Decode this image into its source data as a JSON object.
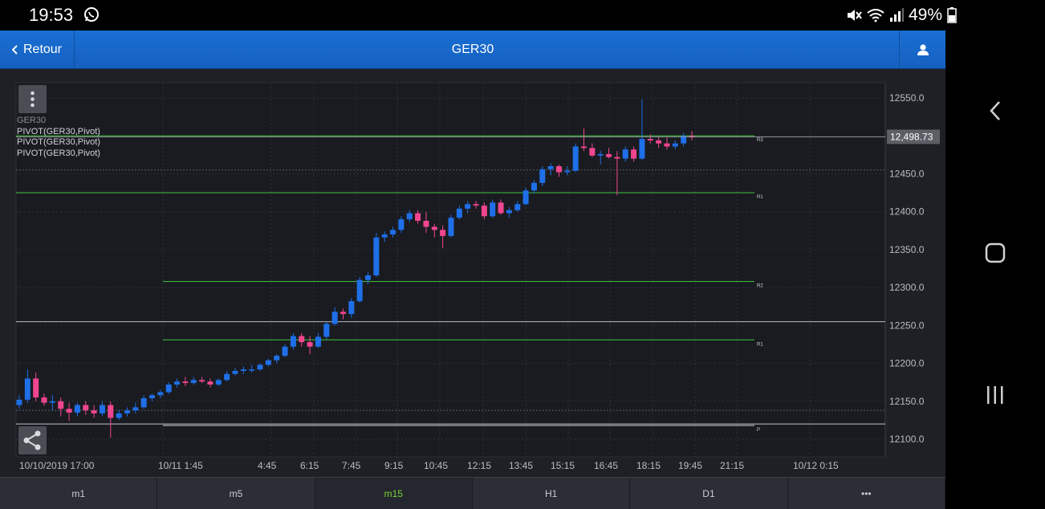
{
  "status_bar": {
    "time": "19:53",
    "battery": "49%",
    "icons": [
      "whatsapp-icon",
      "mute-icon",
      "wifi-icon",
      "signal-icon",
      "battery-icon"
    ]
  },
  "header": {
    "back_label": "Retour",
    "title": "GER30",
    "user_icon": "user-icon"
  },
  "colors": {
    "header_blue": "#1766cb",
    "up_candle": "#1f6fe8",
    "down_candle": "#f0468f",
    "pivot_line": "#3bb33b",
    "active_tab": "#7bd33b",
    "chart_bg": "#1e2026"
  },
  "legend": {
    "symbol": "GER30",
    "lines": [
      "PIVOT(GER30,Pivot)",
      "PIVOT(GER30,Pivot)",
      "PIVOT(GER30,Pivot)"
    ]
  },
  "chart_data": {
    "type": "candlestick",
    "symbol": "GER30",
    "timeframe": "m15",
    "ylim": [
      12085,
      12565
    ],
    "y_ticks": [
      "12550.0",
      "12500.0",
      "12450.0",
      "12400.0",
      "12350.0",
      "12300.0",
      "12250.0",
      "12200.0",
      "12150.0",
      "12100.0"
    ],
    "x_tick_labels": [
      "10/10/2019 17:00",
      "10/11 1:45",
      "4:45",
      "6:15",
      "7:45",
      "9:15",
      "10:45",
      "12:15",
      "13:45",
      "15:15",
      "16:45",
      "18:15",
      "19:45",
      "21:15",
      "10/12 0:15"
    ],
    "current_price": "12,498.73",
    "pivot_levels": [
      {
        "label": "R3",
        "value": 12500
      },
      {
        "label": "R1",
        "value": 12425
      },
      {
        "label": "R2",
        "value": 12308
      },
      {
        "label": "R1",
        "value": 12231
      },
      {
        "label": "P",
        "value": 12118
      }
    ],
    "reference_lines": [
      12255,
      12120
    ],
    "candles": [
      [
        12145,
        12158,
        12140,
        12152
      ],
      [
        12152,
        12192,
        12148,
        12180
      ],
      [
        12180,
        12188,
        12150,
        12155
      ],
      [
        12155,
        12160,
        12144,
        12148
      ],
      [
        12148,
        12158,
        12138,
        12150
      ],
      [
        12150,
        12155,
        12130,
        12140
      ],
      [
        12140,
        12148,
        12124,
        12135
      ],
      [
        12135,
        12148,
        12130,
        12145
      ],
      [
        12145,
        12150,
        12132,
        12138
      ],
      [
        12138,
        12145,
        12128,
        12134
      ],
      [
        12134,
        12150,
        12130,
        12145
      ],
      [
        12145,
        12150,
        12102,
        12128
      ],
      [
        12128,
        12138,
        12125,
        12134
      ],
      [
        12134,
        12142,
        12130,
        12138
      ],
      [
        12138,
        12148,
        12134,
        12142
      ],
      [
        12142,
        12158,
        12140,
        12154
      ],
      [
        12154,
        12160,
        12150,
        12158
      ],
      [
        12158,
        12165,
        12154,
        12162
      ],
      [
        12162,
        12175,
        12160,
        12172
      ],
      [
        12172,
        12180,
        12168,
        12176
      ],
      [
        12176,
        12182,
        12170,
        12174
      ],
      [
        12174,
        12182,
        12172,
        12178
      ],
      [
        12178,
        12182,
        12174,
        12176
      ],
      [
        12176,
        12180,
        12168,
        12172
      ],
      [
        12172,
        12180,
        12170,
        12178
      ],
      [
        12178,
        12190,
        12176,
        12186
      ],
      [
        12186,
        12194,
        12184,
        12190
      ],
      [
        12190,
        12196,
        12186,
        12192
      ],
      [
        12192,
        12198,
        12188,
        12192
      ],
      [
        12192,
        12200,
        12190,
        12198
      ],
      [
        12198,
        12206,
        12196,
        12204
      ],
      [
        12204,
        12212,
        12200,
        12210
      ],
      [
        12210,
        12225,
        12208,
        12222
      ],
      [
        12222,
        12240,
        12218,
        12236
      ],
      [
        12236,
        12240,
        12222,
        12228
      ],
      [
        12228,
        12236,
        12212,
        12222
      ],
      [
        12222,
        12240,
        12220,
        12235
      ],
      [
        12235,
        12255,
        12232,
        12252
      ],
      [
        12252,
        12274,
        12250,
        12268
      ],
      [
        12268,
        12272,
        12258,
        12265
      ],
      [
        12265,
        12286,
        12260,
        12282
      ],
      [
        12282,
        12314,
        12280,
        12310
      ],
      [
        12310,
        12320,
        12304,
        12316
      ],
      [
        12316,
        12372,
        12314,
        12366
      ],
      [
        12366,
        12374,
        12360,
        12370
      ],
      [
        12370,
        12380,
        12366,
        12376
      ],
      [
        12376,
        12394,
        12372,
        12390
      ],
      [
        12390,
        12402,
        12386,
        12398
      ],
      [
        12398,
        12402,
        12384,
        12388
      ],
      [
        12388,
        12400,
        12372,
        12380
      ],
      [
        12380,
        12384,
        12366,
        12376
      ],
      [
        12376,
        12382,
        12352,
        12368
      ],
      [
        12368,
        12396,
        12366,
        12392
      ],
      [
        12392,
        12408,
        12390,
        12404
      ],
      [
        12404,
        12414,
        12398,
        12410
      ],
      [
        12410,
        12414,
        12404,
        12408
      ],
      [
        12408,
        12412,
        12390,
        12394
      ],
      [
        12394,
        12416,
        12392,
        12412
      ],
      [
        12412,
        12416,
        12396,
        12398
      ],
      [
        12398,
        12406,
        12392,
        12402
      ],
      [
        12402,
        12414,
        12400,
        12410
      ],
      [
        12410,
        12432,
        12408,
        12428
      ],
      [
        12428,
        12442,
        12424,
        12438
      ],
      [
        12438,
        12460,
        12434,
        12456
      ],
      [
        12456,
        12464,
        12448,
        12460
      ],
      [
        12460,
        12462,
        12446,
        12452
      ],
      [
        12452,
        12460,
        12448,
        12454
      ],
      [
        12454,
        12490,
        12452,
        12486
      ],
      [
        12486,
        12510,
        12480,
        12484
      ],
      [
        12484,
        12490,
        12472,
        12474
      ],
      [
        12474,
        12480,
        12462,
        12476
      ],
      [
        12476,
        12484,
        12470,
        12472
      ],
      [
        12472,
        12480,
        12422,
        12470
      ],
      [
        12470,
        12486,
        12466,
        12482
      ],
      [
        12482,
        12486,
        12466,
        12470
      ],
      [
        12470,
        12548,
        12468,
        12496
      ],
      [
        12496,
        12502,
        12490,
        12494
      ],
      [
        12494,
        12498,
        12484,
        12490
      ],
      [
        12490,
        12498,
        12482,
        12486
      ],
      [
        12486,
        12494,
        12482,
        12490
      ],
      [
        12490,
        12504,
        12486,
        12500
      ],
      [
        12500,
        12506,
        12494,
        12498
      ]
    ]
  },
  "tabs": [
    {
      "label": "m1",
      "active": false
    },
    {
      "label": "m5",
      "active": false
    },
    {
      "label": "m15",
      "active": true
    },
    {
      "label": "H1",
      "active": false
    },
    {
      "label": "D1",
      "active": false
    },
    {
      "label": "•••",
      "active": false
    }
  ],
  "nav_buttons": [
    "back-nav-icon",
    "home-nav-icon",
    "recents-nav-icon"
  ]
}
